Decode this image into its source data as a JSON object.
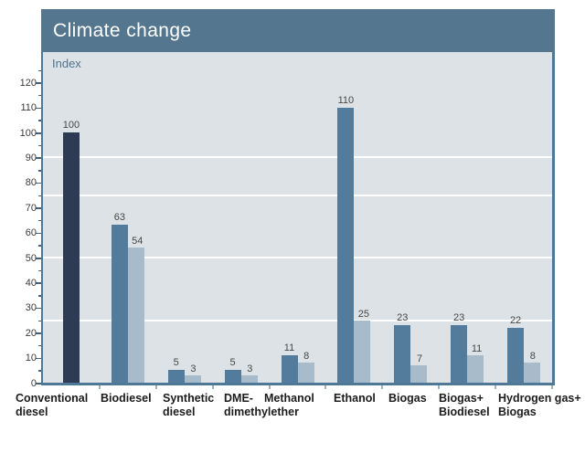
{
  "header": {
    "title": "Climate change"
  },
  "plot": {
    "index_label": "Index"
  },
  "chart_data": {
    "type": "bar",
    "title": "Climate change",
    "ylabel": "Index",
    "xlabel": "",
    "ylim": [
      0,
      132
    ],
    "y_major_ticks": [
      0,
      10,
      20,
      30,
      40,
      50,
      60,
      70,
      80,
      90,
      100,
      110,
      120
    ],
    "y_minor_tick_step": 5,
    "gridlines_at": [
      25,
      50,
      75,
      90
    ],
    "grid": "horizontal-white-lines",
    "legend_position": "none",
    "categories": [
      "Conventional diesel",
      "Biodiesel",
      "Synthetic diesel",
      "DME-dimethylether",
      "Methanol",
      "Ethanol",
      "Biogas",
      "Biogas+ Biodiesel",
      "Hydrogen gas+ Biogas"
    ],
    "category_lines": [
      [
        "Conventional",
        "diesel"
      ],
      [
        "Biodiesel"
      ],
      [
        "Synthetic",
        "diesel"
      ],
      [
        "DME-",
        "dimethylether"
      ],
      [
        "Methanol"
      ],
      [
        "Ethanol"
      ],
      [
        "Biogas"
      ],
      [
        "Biogas+",
        "Biodiesel"
      ],
      [
        "Hydrogen gas+",
        "Biogas"
      ]
    ],
    "series": [
      {
        "name": "bar-1",
        "values": [
          100,
          63,
          5,
          5,
          11,
          110,
          23,
          23,
          22
        ]
      },
      {
        "name": "bar-2",
        "values": [
          null,
          54,
          3,
          3,
          8,
          25,
          7,
          11,
          8
        ]
      }
    ],
    "colors": {
      "bar_highlight": "#2d3b55",
      "bar_primary": "#527b9c",
      "bar_secondary": "#a8bbca",
      "header_bg": "#54768e",
      "plot_bg": "#dce2e5",
      "axis_line": "#4f7896",
      "gridline": "#ffffff",
      "x_tick": "#9db3c2"
    }
  }
}
